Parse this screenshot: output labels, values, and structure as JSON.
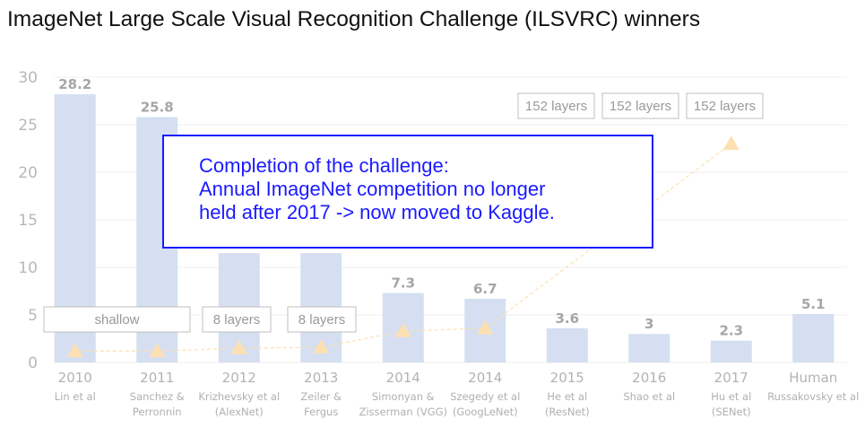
{
  "title": "ImageNet Large Scale Visual Recognition Challenge (ILSVRC) winners",
  "note_lines": [
    "Completion of the challenge:",
    "Annual ImageNet competition no longer",
    "held after 2017 -> now moved to Kaggle."
  ],
  "colors": {
    "bar": "#d5dff1",
    "marker": "#fde0b2",
    "note_border": "#1a1aff",
    "note_text": "#1a1aff"
  },
  "chart_data": {
    "type": "bar",
    "title": "ImageNet Large Scale Visual Recognition Challenge (ILSVRC) winners",
    "xlabel": "",
    "ylabel": "",
    "ylim": [
      0,
      30
    ],
    "yticks": [
      0,
      5,
      10,
      15,
      20,
      25,
      30
    ],
    "grid": true,
    "categories": [
      "2010",
      "2011",
      "2012",
      "2013",
      "2014",
      "2014",
      "2015",
      "2016",
      "2017",
      "Human"
    ],
    "subtitles": [
      [
        "Lin et al"
      ],
      [
        "Sanchez &",
        "Perronnin"
      ],
      [
        "Krizhevsky et al",
        "(AlexNet)"
      ],
      [
        "Zeiler &",
        "Fergus"
      ],
      [
        "Simonyan &",
        "Zisserman (VGG)"
      ],
      [
        "Szegedy et al",
        "(GoogLeNet)"
      ],
      [
        "He et al",
        "(ResNet)"
      ],
      [
        "Shao et al"
      ],
      [
        "Hu et al",
        "(SENet)"
      ],
      [
        "Russakovsky et al"
      ]
    ],
    "values": [
      28.2,
      25.8,
      null,
      null,
      7.3,
      6.7,
      3.6,
      3,
      2.3,
      5.1
    ],
    "value_labels": [
      "28.2",
      "25.8",
      "",
      "",
      "7.3",
      "6.7",
      "3.6",
      "3",
      "2.3",
      "5.1"
    ],
    "layer_markers": [
      1.2,
      1.2,
      1.5,
      1.6,
      3.3,
      3.6,
      null,
      null,
      23,
      null
    ],
    "layer_labels": [
      "shallow",
      "8 layers",
      "8 layers",
      "152 layers",
      "152 layers",
      "152 layers"
    ]
  }
}
